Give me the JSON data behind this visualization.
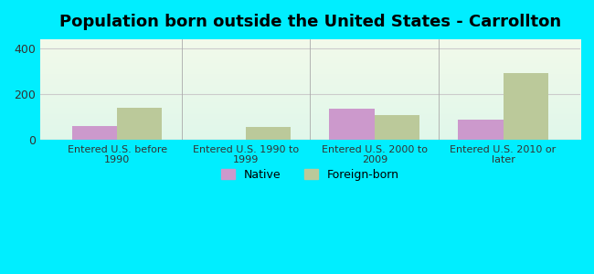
{
  "title": "Population born outside the United States - Carrollton",
  "categories": [
    "Entered U.S. before\n1990",
    "Entered U.S. 1990 to\n1999",
    "Entered U.S. 2000 to\n2009",
    "Entered U.S. 2010 or\nlater"
  ],
  "native_values": [
    60,
    0,
    135,
    90
  ],
  "foreign_values": [
    140,
    55,
    110,
    290
  ],
  "native_color": "#cc99cc",
  "foreign_color": "#bbc99a",
  "background_color": "#00eeff",
  "ylim": [
    0,
    440
  ],
  "yticks": [
    0,
    200,
    400
  ],
  "title_fontsize": 13,
  "legend_labels": [
    "Native",
    "Foreign-born"
  ],
  "bar_width": 0.35,
  "grid_color": "#cccccc",
  "separator_color": "#aaaaaa"
}
